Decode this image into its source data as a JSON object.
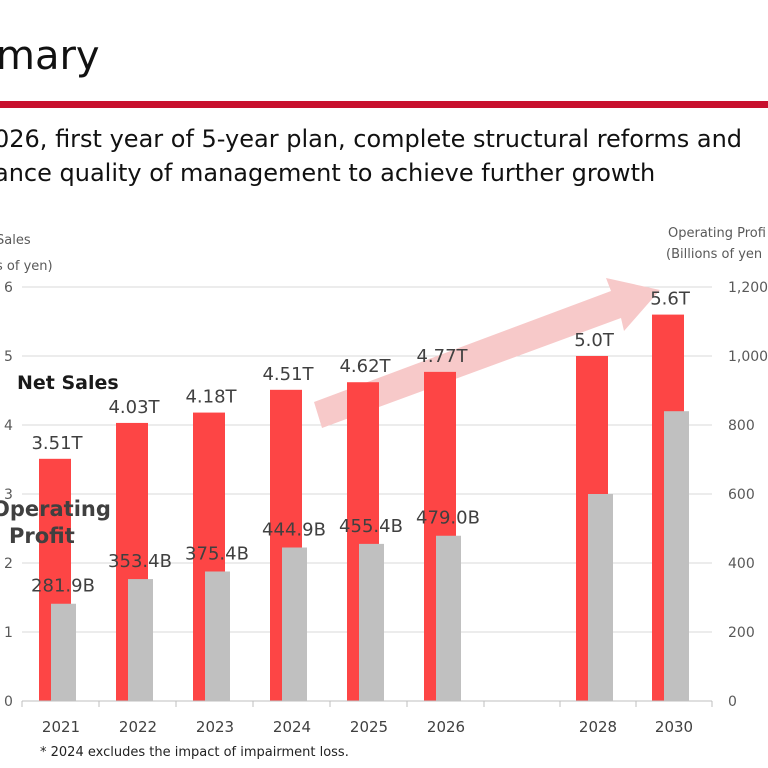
{
  "page": {
    "title": "mary",
    "subtitle_line1": "026, first year of 5-year plan, complete structural reforms and",
    "subtitle_line2": "ance quality of management to achieve further growth",
    "footnote": "*   2024 excludes the impact of impairment loss."
  },
  "colors": {
    "net_sales": "#fd4545",
    "operating_profit": "#c0c0c0",
    "rule": "#c8102e",
    "arrow": "#f7c9c9"
  },
  "chart_data": {
    "type": "bar",
    "categories": [
      "2021",
      "2022",
      "2023",
      "2024",
      "2025",
      "2026",
      "2028",
      "2030"
    ],
    "left_axis": {
      "label_line1": "Sales",
      "label_line2": "s of yen)",
      "ylim": [
        0,
        6
      ],
      "ticks": [
        "0",
        "1",
        "2",
        "3",
        "4",
        "5",
        "6"
      ]
    },
    "right_axis": {
      "label_line1": "Operating Profi",
      "label_line2": "(Billions of yen",
      "ylim": [
        0,
        1200
      ],
      "ticks": [
        "0",
        "200",
        "400",
        "600",
        "800",
        "1,000",
        "1,200"
      ]
    },
    "series": [
      {
        "name": "Net Sales",
        "axis": "left",
        "values": [
          3.51,
          4.03,
          4.18,
          4.51,
          4.62,
          4.77,
          5.0,
          5.6
        ],
        "labels": [
          "3.51T",
          "4.03T",
          "4.18T",
          "4.51T",
          "4.62T",
          "4.77T",
          "5.0T",
          "5.6T"
        ]
      },
      {
        "name_line1": "Operating",
        "name_line2": "Profit",
        "axis": "right",
        "values": [
          281.9,
          353.4,
          375.4,
          444.9,
          455.4,
          479.0,
          600,
          840
        ],
        "labels": [
          "281.9B",
          "353.4B",
          "375.4B",
          "444.9B",
          "455.4B",
          "479.0B",
          "",
          ""
        ]
      }
    ],
    "grid": true
  }
}
